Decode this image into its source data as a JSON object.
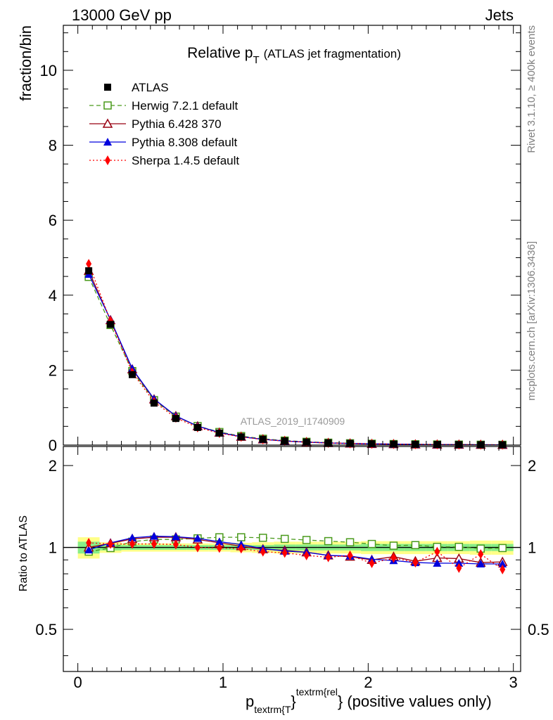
{
  "header": {
    "energy": "13000 GeV pp",
    "category": "Jets"
  },
  "side_labels": {
    "rivet": "Rivet 3.1.10, ≥ 400k events",
    "source": "mcplots.cern.ch [arXiv:1306.3436]"
  },
  "chart_data": {
    "type": "line",
    "title": "Relative p_T (ATLAS jet fragmentation)",
    "title_main": "Relative p",
    "title_sub": "T",
    "title_rest": "(ATLAS jet fragmentation)",
    "analysis_id": "ATLAS_2019_I1740909",
    "ylabel": "fraction/bin",
    "ratio_ylabel": "Ratio to ATLAS",
    "xlabel": {
      "p": "p",
      "sub": "textrm{T",
      "sup": "textrm{rel",
      "close": "}",
      "rest": "} (positive values only)"
    },
    "xlim": [
      -0.1,
      3.05
    ],
    "ylim": [
      0,
      11.2
    ],
    "ratio_ylim": [
      0.35,
      2.35
    ],
    "x_ticks": [
      0,
      1,
      2,
      3
    ],
    "x_tick_labels": [
      "0",
      "1",
      "2",
      "3"
    ],
    "y_ticks": [
      0,
      2,
      4,
      6,
      8,
      10
    ],
    "y_tick_labels": [
      "0",
      "2",
      "4",
      "6",
      "8",
      "10"
    ],
    "ratio_y_ticks": [
      0.5,
      1,
      2
    ],
    "ratio_y_tick_labels": [
      "0.5",
      "1",
      "2"
    ],
    "x": [
      0.075,
      0.225,
      0.375,
      0.525,
      0.675,
      0.825,
      0.975,
      1.125,
      1.275,
      1.425,
      1.575,
      1.725,
      1.875,
      2.025,
      2.175,
      2.325,
      2.475,
      2.625,
      2.775,
      2.925
    ],
    "bin_edges": [
      0,
      0.15,
      0.3,
      0.45,
      0.6,
      0.75,
      0.9,
      1.05,
      1.2,
      1.35,
      1.5,
      1.65,
      1.8,
      1.95,
      2.1,
      2.25,
      2.4,
      2.55,
      2.7,
      2.85,
      3.0
    ],
    "reference": {
      "name": "ATLAS",
      "values": [
        4.65,
        3.22,
        1.88,
        1.12,
        0.71,
        0.47,
        0.32,
        0.22,
        0.155,
        0.112,
        0.082,
        0.061,
        0.046,
        0.035,
        0.027,
        0.021,
        0.016,
        0.013,
        0.01,
        0.008
      ],
      "band_inner": [
        0.05,
        0.025,
        0.02,
        0.02,
        0.02,
        0.02,
        0.02,
        0.02,
        0.02,
        0.025,
        0.025,
        0.025,
        0.025,
        0.03,
        0.03,
        0.03,
        0.03,
        0.03,
        0.03,
        0.03
      ],
      "band_outer": [
        0.09,
        0.045,
        0.035,
        0.035,
        0.035,
        0.035,
        0.035,
        0.04,
        0.045,
        0.05,
        0.05,
        0.05,
        0.05,
        0.055,
        0.055,
        0.055,
        0.055,
        0.055,
        0.06,
        0.06
      ]
    },
    "series": [
      {
        "name": "Herwig 7.2.1 default",
        "color": "#4a9a1c",
        "dash": "6,4",
        "marker": "open-square",
        "ratios": [
          0.965,
          0.995,
          1.05,
          1.07,
          1.07,
          1.08,
          1.09,
          1.09,
          1.085,
          1.075,
          1.065,
          1.055,
          1.045,
          1.03,
          1.015,
          1.02,
          1.005,
          1.005,
          0.99,
          0.995
        ]
      },
      {
        "name": "Pythia 6.428 370",
        "color": "#990011",
        "dash": "",
        "marker": "open-triangle",
        "ratios": [
          1.0,
          1.035,
          1.075,
          1.09,
          1.09,
          1.07,
          1.04,
          1.01,
          0.985,
          0.975,
          0.96,
          0.935,
          0.925,
          0.9,
          0.925,
          0.89,
          0.915,
          0.91,
          0.88,
          0.885
        ]
      },
      {
        "name": "Pythia 8.308 default",
        "color": "#0000dd",
        "dash": "",
        "marker": "filled-triangle",
        "ratios": [
          0.98,
          1.04,
          1.085,
          1.1,
          1.095,
          1.08,
          1.05,
          1.025,
          0.99,
          0.97,
          0.96,
          0.935,
          0.93,
          0.905,
          0.895,
          0.88,
          0.875,
          0.875,
          0.87,
          0.87
        ]
      },
      {
        "name": "Sherpa 1.4.5 default",
        "color": "#ff0000",
        "dash": "2,3",
        "marker": "filled-diamond",
        "ratios": [
          1.04,
          1.03,
          1.03,
          1.03,
          1.025,
          1.0,
          0.995,
          0.99,
          0.965,
          0.955,
          0.935,
          0.92,
          0.935,
          0.875,
          0.915,
          0.88,
          0.965,
          0.84,
          0.945,
          0.83
        ]
      }
    ]
  }
}
